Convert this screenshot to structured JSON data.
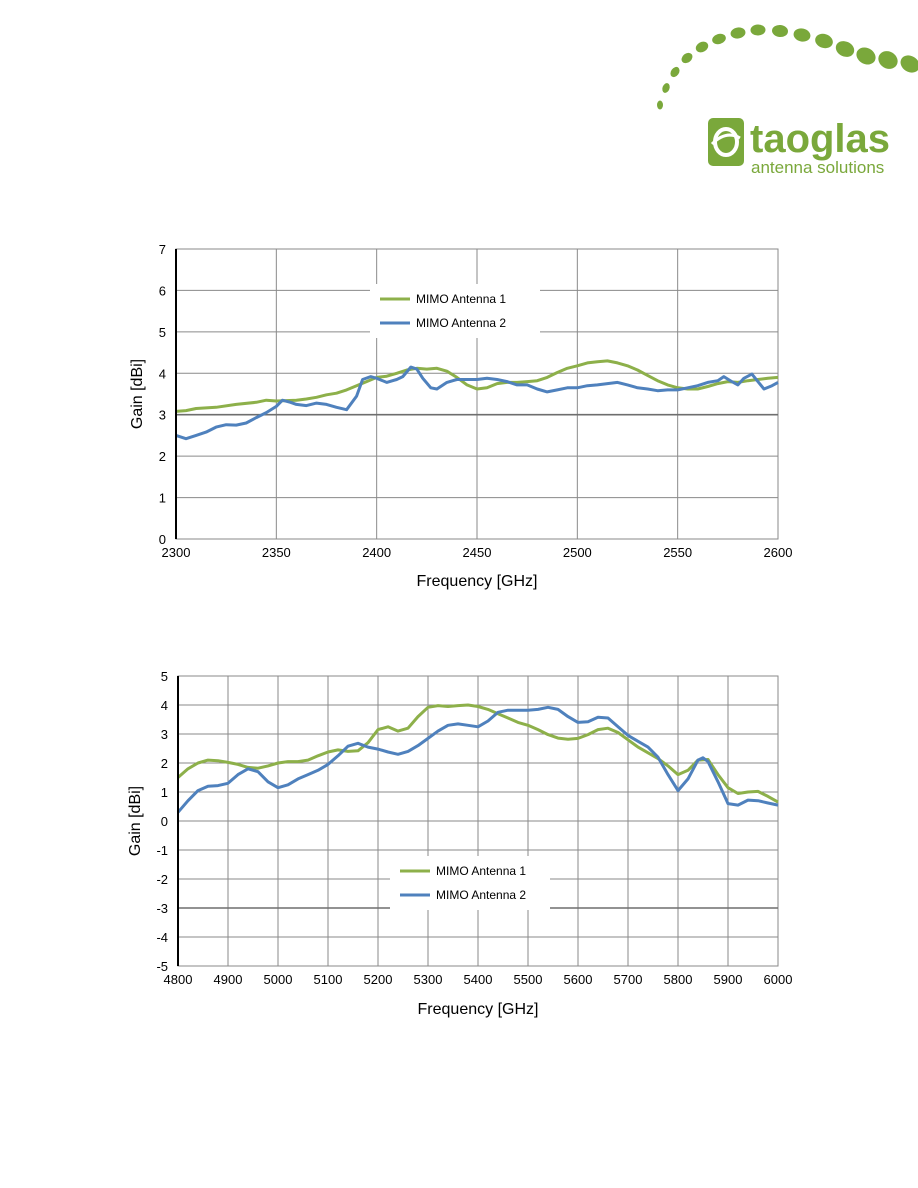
{
  "logo": {
    "name": "taoglas",
    "tagline": "antenna solutions",
    "brand_color": "#7aa83b"
  },
  "colors": {
    "series1": "#8db04a",
    "series2": "#4f81bd",
    "grid": "#8a8a8a",
    "axis": "#000000"
  },
  "chart_data": [
    {
      "type": "line",
      "title": "",
      "xlabel": "Frequency [GHz]",
      "ylabel": "Gain [dBi]",
      "xlim": [
        2300,
        2600
      ],
      "ylim": [
        0,
        7
      ],
      "xticks": [
        2300,
        2350,
        2400,
        2450,
        2500,
        2550,
        2600
      ],
      "yticks": [
        0,
        1,
        2,
        3,
        4,
        5,
        6,
        7
      ],
      "grid": true,
      "legend_position": "top-center",
      "series": [
        {
          "name": "MIMO Antenna 1",
          "x": [
            2300,
            2305,
            2310,
            2320,
            2330,
            2340,
            2345,
            2350,
            2360,
            2365,
            2370,
            2375,
            2380,
            2385,
            2390,
            2395,
            2400,
            2405,
            2410,
            2415,
            2420,
            2425,
            2430,
            2435,
            2440,
            2445,
            2450,
            2455,
            2460,
            2465,
            2470,
            2475,
            2480,
            2485,
            2490,
            2495,
            2500,
            2505,
            2510,
            2515,
            2520,
            2525,
            2530,
            2535,
            2540,
            2545,
            2550,
            2555,
            2560,
            2565,
            2570,
            2575,
            2580,
            2585,
            2590,
            2595,
            2600
          ],
          "y": [
            3.08,
            3.1,
            3.15,
            3.18,
            3.25,
            3.3,
            3.35,
            3.33,
            3.35,
            3.38,
            3.42,
            3.48,
            3.52,
            3.6,
            3.7,
            3.8,
            3.9,
            3.93,
            4.0,
            4.08,
            4.12,
            4.1,
            4.12,
            4.05,
            3.9,
            3.72,
            3.62,
            3.65,
            3.75,
            3.78,
            3.78,
            3.8,
            3.82,
            3.9,
            4.02,
            4.12,
            4.18,
            4.25,
            4.28,
            4.3,
            4.25,
            4.18,
            4.08,
            3.95,
            3.82,
            3.72,
            3.65,
            3.62,
            3.62,
            3.68,
            3.75,
            3.8,
            3.78,
            3.82,
            3.85,
            3.88,
            3.9
          ]
        },
        {
          "name": "MIMO Antenna 2",
          "x": [
            2300,
            2305,
            2310,
            2315,
            2320,
            2325,
            2330,
            2335,
            2340,
            2345,
            2350,
            2353,
            2357,
            2360,
            2365,
            2370,
            2375,
            2380,
            2385,
            2390,
            2393,
            2397,
            2400,
            2405,
            2410,
            2413,
            2417,
            2420,
            2423,
            2427,
            2430,
            2435,
            2440,
            2445,
            2450,
            2455,
            2460,
            2465,
            2470,
            2475,
            2480,
            2485,
            2490,
            2495,
            2500,
            2505,
            2510,
            2515,
            2520,
            2525,
            2530,
            2535,
            2540,
            2545,
            2550,
            2555,
            2560,
            2565,
            2570,
            2573,
            2577,
            2580,
            2583,
            2587,
            2590,
            2593,
            2597,
            2600
          ],
          "y": [
            2.5,
            2.42,
            2.5,
            2.58,
            2.7,
            2.76,
            2.75,
            2.8,
            2.93,
            3.05,
            3.2,
            3.35,
            3.3,
            3.25,
            3.22,
            3.28,
            3.25,
            3.18,
            3.12,
            3.45,
            3.85,
            3.92,
            3.88,
            3.78,
            3.85,
            3.92,
            4.15,
            4.1,
            3.88,
            3.65,
            3.62,
            3.78,
            3.85,
            3.85,
            3.85,
            3.88,
            3.85,
            3.8,
            3.72,
            3.72,
            3.62,
            3.55,
            3.6,
            3.65,
            3.65,
            3.7,
            3.72,
            3.75,
            3.78,
            3.72,
            3.65,
            3.62,
            3.58,
            3.6,
            3.6,
            3.65,
            3.7,
            3.78,
            3.82,
            3.92,
            3.8,
            3.72,
            3.88,
            3.98,
            3.8,
            3.62,
            3.7,
            3.78
          ]
        }
      ]
    },
    {
      "type": "line",
      "title": "",
      "xlabel": "Frequency [GHz]",
      "ylabel": "Gain [dBi]",
      "xlim": [
        4800,
        6000
      ],
      "ylim": [
        -5,
        5
      ],
      "xticks": [
        4800,
        4900,
        5000,
        5100,
        5200,
        5300,
        5400,
        5500,
        5600,
        5700,
        5800,
        5900,
        6000
      ],
      "yticks": [
        -5,
        -4,
        -3,
        -2,
        -1,
        0,
        1,
        2,
        3,
        4,
        5
      ],
      "grid": true,
      "legend_position": "bottom-center",
      "series": [
        {
          "name": "MIMO Antenna 1",
          "x": [
            4800,
            4820,
            4840,
            4860,
            4880,
            4900,
            4920,
            4940,
            4960,
            4980,
            5000,
            5020,
            5040,
            5060,
            5080,
            5100,
            5120,
            5140,
            5160,
            5180,
            5200,
            5220,
            5240,
            5260,
            5280,
            5300,
            5320,
            5340,
            5360,
            5380,
            5400,
            5420,
            5440,
            5460,
            5480,
            5500,
            5520,
            5540,
            5560,
            5580,
            5600,
            5620,
            5640,
            5660,
            5680,
            5700,
            5720,
            5740,
            5760,
            5780,
            5800,
            5820,
            5840,
            5860,
            5880,
            5900,
            5920,
            5940,
            5960,
            5980,
            6000
          ],
          "y": [
            1.5,
            1.8,
            2.0,
            2.1,
            2.08,
            2.02,
            1.95,
            1.85,
            1.82,
            1.9,
            2.0,
            2.05,
            2.05,
            2.1,
            2.25,
            2.38,
            2.45,
            2.4,
            2.42,
            2.7,
            3.15,
            3.25,
            3.1,
            3.2,
            3.6,
            3.92,
            3.98,
            3.95,
            3.98,
            4.0,
            3.95,
            3.85,
            3.7,
            3.55,
            3.4,
            3.3,
            3.15,
            2.98,
            2.86,
            2.82,
            2.85,
            2.98,
            3.15,
            3.2,
            3.05,
            2.8,
            2.55,
            2.35,
            2.15,
            1.9,
            1.6,
            1.75,
            2.1,
            2.12,
            1.6,
            1.15,
            0.95,
            1.0,
            1.02,
            0.85,
            0.65
          ]
        },
        {
          "name": "MIMO Antenna 2",
          "x": [
            4800,
            4820,
            4840,
            4860,
            4880,
            4900,
            4920,
            4940,
            4960,
            4980,
            5000,
            5020,
            5040,
            5060,
            5080,
            5100,
            5120,
            5140,
            5160,
            5180,
            5200,
            5220,
            5240,
            5260,
            5280,
            5300,
            5320,
            5340,
            5360,
            5380,
            5400,
            5420,
            5440,
            5460,
            5480,
            5500,
            5520,
            5540,
            5560,
            5580,
            5600,
            5620,
            5640,
            5660,
            5680,
            5700,
            5720,
            5740,
            5760,
            5780,
            5800,
            5820,
            5840,
            5850,
            5860,
            5880,
            5900,
            5920,
            5940,
            5960,
            5980,
            6000
          ],
          "y": [
            0.3,
            0.7,
            1.05,
            1.2,
            1.22,
            1.3,
            1.6,
            1.8,
            1.7,
            1.35,
            1.15,
            1.25,
            1.45,
            1.6,
            1.75,
            1.95,
            2.25,
            2.58,
            2.68,
            2.55,
            2.48,
            2.38,
            2.3,
            2.4,
            2.6,
            2.85,
            3.1,
            3.3,
            3.35,
            3.3,
            3.25,
            3.45,
            3.75,
            3.82,
            3.82,
            3.82,
            3.85,
            3.92,
            3.85,
            3.6,
            3.4,
            3.42,
            3.58,
            3.55,
            3.25,
            2.95,
            2.75,
            2.55,
            2.2,
            1.6,
            1.05,
            1.45,
            2.1,
            2.18,
            2.05,
            1.35,
            0.6,
            0.55,
            0.72,
            0.7,
            0.62,
            0.55
          ]
        }
      ]
    }
  ]
}
